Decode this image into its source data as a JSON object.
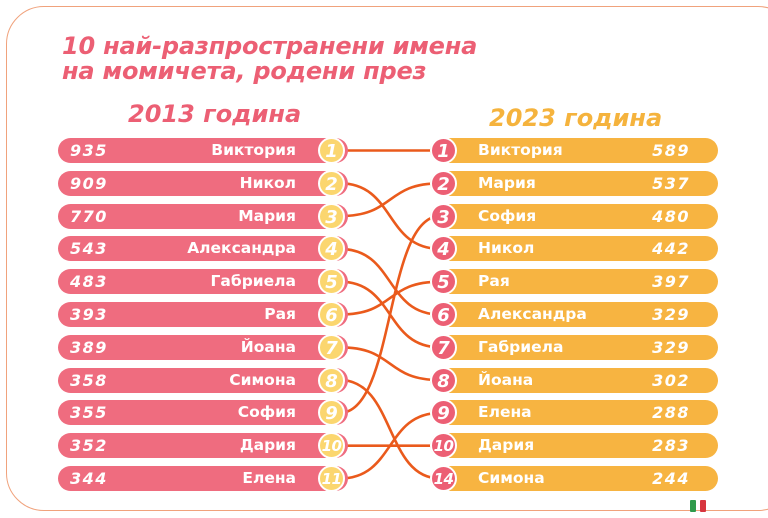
{
  "title": {
    "line1": "10 най-разпространени имена",
    "line2": "на момичета, родени през"
  },
  "left_year": "2013 година",
  "right_year": "2023 година",
  "colors": {
    "pink": "#ef6c7f",
    "title_pink": "#ec5f74",
    "orange": "#f7b441",
    "rank_yellow": "#fbd66f",
    "connector": "#ea5a1c",
    "border": "#f0a27c"
  },
  "chart_data": {
    "type": "table",
    "title": "10 най-разпространени имена на момичета, родени през",
    "left": {
      "year": "2013 година",
      "rows": [
        {
          "rank": "1",
          "name": "Виктория",
          "count": "935"
        },
        {
          "rank": "2",
          "name": "Никол",
          "count": "909"
        },
        {
          "rank": "3",
          "name": "Мария",
          "count": "770"
        },
        {
          "rank": "4",
          "name": "Александра",
          "count": "543"
        },
        {
          "rank": "5",
          "name": "Габриела",
          "count": "483"
        },
        {
          "rank": "6",
          "name": "Рая",
          "count": "393"
        },
        {
          "rank": "7",
          "name": "Йоана",
          "count": "389"
        },
        {
          "rank": "8",
          "name": "Симона",
          "count": "358"
        },
        {
          "rank": "9",
          "name": "София",
          "count": "355"
        },
        {
          "rank": "10",
          "name": "Дария",
          "count": "352"
        },
        {
          "rank": "11",
          "name": "Елена",
          "count": "344"
        }
      ]
    },
    "right": {
      "year": "2023 година",
      "rows": [
        {
          "rank": "1",
          "name": "Виктория",
          "count": "589"
        },
        {
          "rank": "2",
          "name": "Мария",
          "count": "537"
        },
        {
          "rank": "3",
          "name": "София",
          "count": "480"
        },
        {
          "rank": "4",
          "name": "Никол",
          "count": "442"
        },
        {
          "rank": "5",
          "name": "Рая",
          "count": "397"
        },
        {
          "rank": "6",
          "name": "Александра",
          "count": "329"
        },
        {
          "rank": "7",
          "name": "Габриела",
          "count": "329"
        },
        {
          "rank": "8",
          "name": "Йоана",
          "count": "302"
        },
        {
          "rank": "9",
          "name": "Елена",
          "count": "288"
        },
        {
          "rank": "10",
          "name": "Дария",
          "count": "283"
        },
        {
          "rank": "14",
          "name": "Симона",
          "count": "244"
        }
      ]
    }
  }
}
